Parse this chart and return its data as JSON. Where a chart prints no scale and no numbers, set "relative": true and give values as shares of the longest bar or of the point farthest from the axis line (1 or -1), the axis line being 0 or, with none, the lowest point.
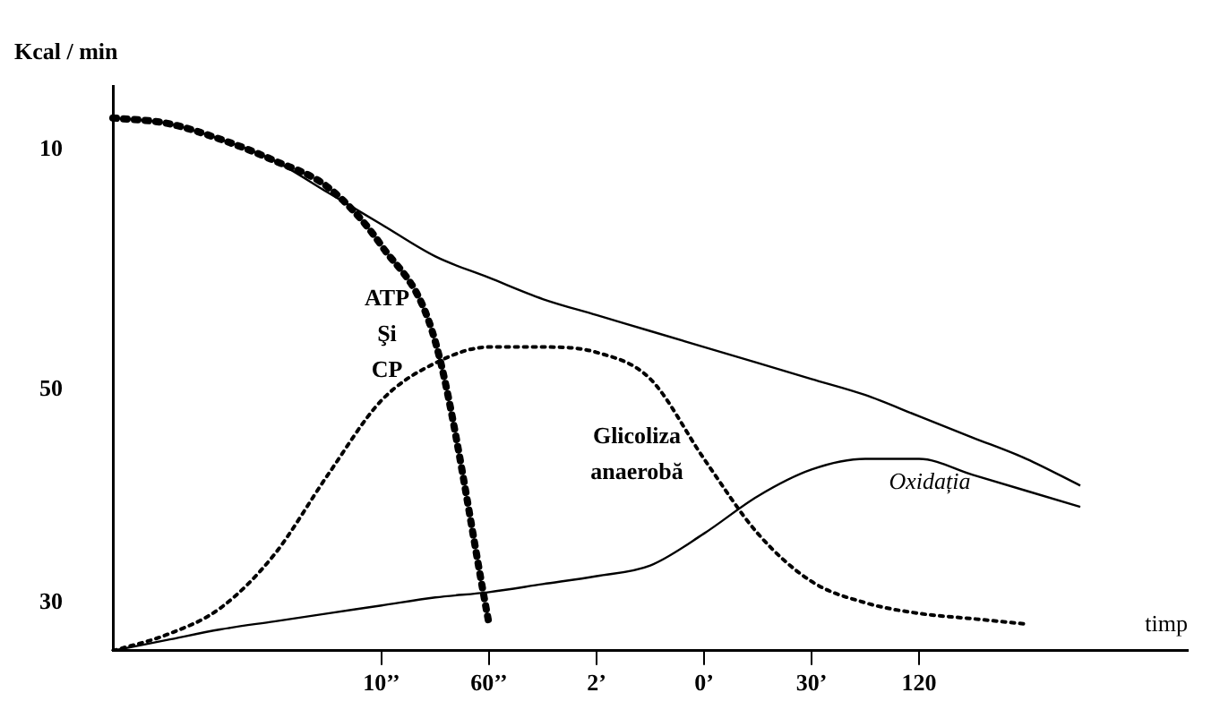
{
  "chart_data": {
    "type": "line",
    "relative": true,
    "ylabel": "Kcal / min",
    "xlabel": "timp",
    "categories": [
      null,
      null,
      null,
      null,
      null,
      "10’’",
      null,
      "60’’",
      null,
      "2’",
      null,
      "0’",
      null,
      "30’",
      null,
      "120",
      null,
      null,
      null,
      null,
      null
    ],
    "annotations": [
      "10",
      "50",
      "30"
    ],
    "grid": false,
    "legend": false,
    "marker": "none",
    "series": [
      {
        "name": "ATP Şi CP",
        "color": "#000000",
        "line_style": "dotted",
        "values": [
          1.0,
          0.99,
          0.96,
          0.92,
          0.87,
          0.76,
          0.58,
          0.05,
          null,
          null,
          null,
          null,
          null,
          null,
          null,
          null,
          null,
          null,
          null,
          null,
          null
        ]
      },
      {
        "color": "#000000",
        "line_style": "solid",
        "values": [
          1.0,
          0.99,
          0.96,
          0.92,
          0.86,
          0.8,
          0.74,
          0.7,
          0.66,
          0.63,
          0.6,
          0.57,
          0.54,
          0.51,
          0.48,
          0.44,
          0.4,
          0.36,
          0.31,
          null,
          null
        ]
      },
      {
        "name": "Glicoliza anaerobă",
        "color": "#000000",
        "line_style": "dotted",
        "values": [
          0,
          0.03,
          0.08,
          0.18,
          0.33,
          0.47,
          0.54,
          0.57,
          0.57,
          0.56,
          0.51,
          0.36,
          0.22,
          0.13,
          0.09,
          0.07,
          0.06,
          0.05,
          null,
          null,
          null
        ]
      },
      {
        "name": "Oxidația",
        "color": "#000000",
        "line_style": "solid",
        "values": [
          0,
          0.02,
          0.04,
          0.055,
          0.07,
          0.085,
          0.1,
          0.11,
          0.125,
          0.14,
          0.16,
          0.22,
          0.29,
          0.34,
          0.36,
          0.36,
          0.33,
          0.3,
          0.27,
          null,
          null
        ]
      }
    ]
  }
}
